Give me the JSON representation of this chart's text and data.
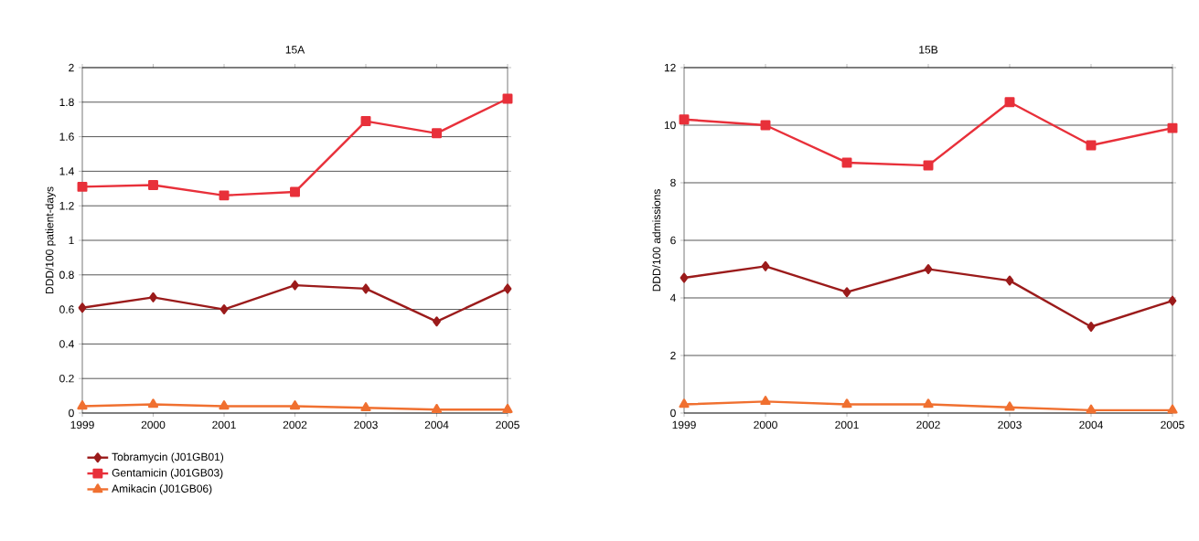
{
  "chart_data": [
    {
      "type": "line",
      "title": "15A",
      "ylabel": "DDD/100 patient-days",
      "categories": [
        "1999",
        "2000",
        "2001",
        "2002",
        "2003",
        "2004",
        "2005"
      ],
      "ylim": [
        0,
        2
      ],
      "yticks": [
        0,
        0.2,
        0.4,
        0.6,
        0.8,
        1,
        1.2,
        1.4,
        1.6,
        1.8,
        2
      ],
      "grid": "y",
      "legend": "bottom left",
      "series": [
        {
          "name": "Tobramycin (J01GB01)",
          "color": "#9b1b1b",
          "marker": "diamond",
          "values": [
            0.61,
            0.67,
            0.6,
            0.74,
            0.72,
            0.53,
            0.72
          ]
        },
        {
          "name": "Gentamicin (J01GB03)",
          "color": "#e8303a",
          "marker": "square",
          "values": [
            1.31,
            1.32,
            1.26,
            1.28,
            1.69,
            1.62,
            1.82
          ]
        },
        {
          "name": "Amikacin (J01GB06)",
          "color": "#f07030",
          "marker": "triangle",
          "values": [
            0.04,
            0.05,
            0.04,
            0.04,
            0.03,
            0.02,
            0.02
          ]
        }
      ]
    },
    {
      "type": "line",
      "title": "15B",
      "ylabel": "DDD/100 admissions",
      "categories": [
        "1999",
        "2000",
        "2001",
        "2002",
        "2003",
        "2004",
        "2005"
      ],
      "ylim": [
        0,
        12
      ],
      "yticks": [
        0,
        2,
        4,
        6,
        8,
        10,
        12
      ],
      "grid": "y",
      "series": [
        {
          "color": "#9b1b1b",
          "marker": "diamond",
          "values": [
            4.7,
            5.1,
            4.2,
            5.0,
            4.6,
            3.0,
            3.9
          ]
        },
        {
          "color": "#e8303a",
          "marker": "square",
          "values": [
            10.2,
            10.0,
            8.7,
            8.6,
            10.8,
            9.3,
            9.9
          ]
        },
        {
          "color": "#f07030",
          "marker": "triangle",
          "values": [
            0.3,
            0.4,
            0.3,
            0.3,
            0.2,
            0.1,
            0.1
          ]
        }
      ]
    }
  ]
}
